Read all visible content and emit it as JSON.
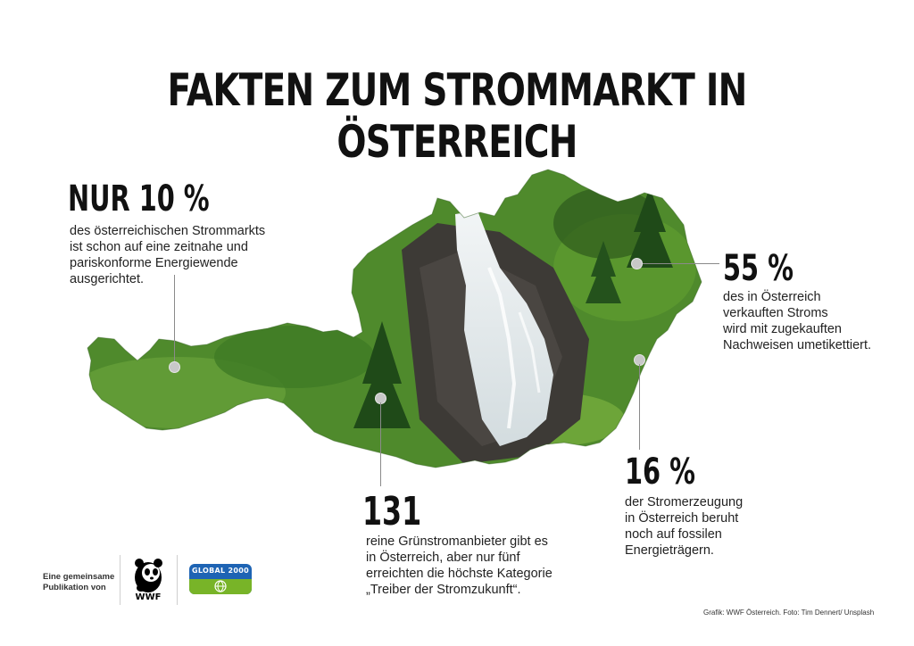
{
  "title": "FAKTEN ZUM STROMMARKT IN ÖSTERREICH",
  "facts": [
    {
      "stat": "NUR 10 %",
      "lines": [
        "des österreichischen Strommarkts",
        "ist schon auf eine zeitnahe und",
        "pariskonforme Energiewende",
        "ausgerichtet."
      ]
    },
    {
      "stat": "55 %",
      "lines": [
        "des in Österreich",
        "verkauften Stroms",
        "wird mit zugekauften",
        "Nachweisen umetikettiert."
      ]
    },
    {
      "stat": "16 %",
      "lines": [
        "der Stromerzeugung",
        "in Österreich beruht",
        "noch auf fossilen",
        "Energieträgern."
      ]
    },
    {
      "stat": "131",
      "lines": [
        "reine Grünstromanbieter gibt es",
        "in Österreich, aber nur fünf",
        "erreichten die höchste Kategorie",
        "„Treiber der Stromzukunft“."
      ]
    }
  ],
  "footer": {
    "publication_lines": [
      "Eine gemeinsame",
      "Publikation von"
    ],
    "wwf_logo_text": "WWF",
    "global2000_logo_text": "GLOBAL 2000",
    "credit": "Grafik: WWF Österreich. Foto: Tim Dennert/ Unsplash"
  },
  "colors": {
    "grass": "#4f8a2c",
    "grass_dark": "#2d5a1c",
    "rock": "#3d3a36",
    "water": "#e8eef0",
    "leader": "#8a8a8a",
    "marker": "#c8c8c8",
    "wwf_blue_bg": "#1e64b4",
    "global2000_green": "#78b428"
  }
}
